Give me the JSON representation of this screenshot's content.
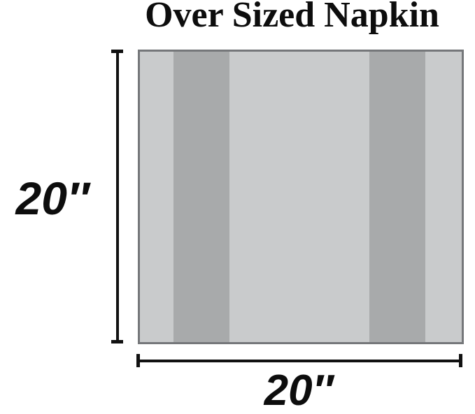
{
  "title": "Over Sized Napkin",
  "diagram": {
    "product": "napkin",
    "height_label": "20″",
    "width_label": "20″"
  },
  "colors": {
    "background": "#ffffff",
    "napkin_base": "#c9cbcc",
    "napkin_stripe": "#a8aaab",
    "napkin_border": "#75777a",
    "dimension_line": "#111111",
    "text": "#0d0d0d"
  }
}
